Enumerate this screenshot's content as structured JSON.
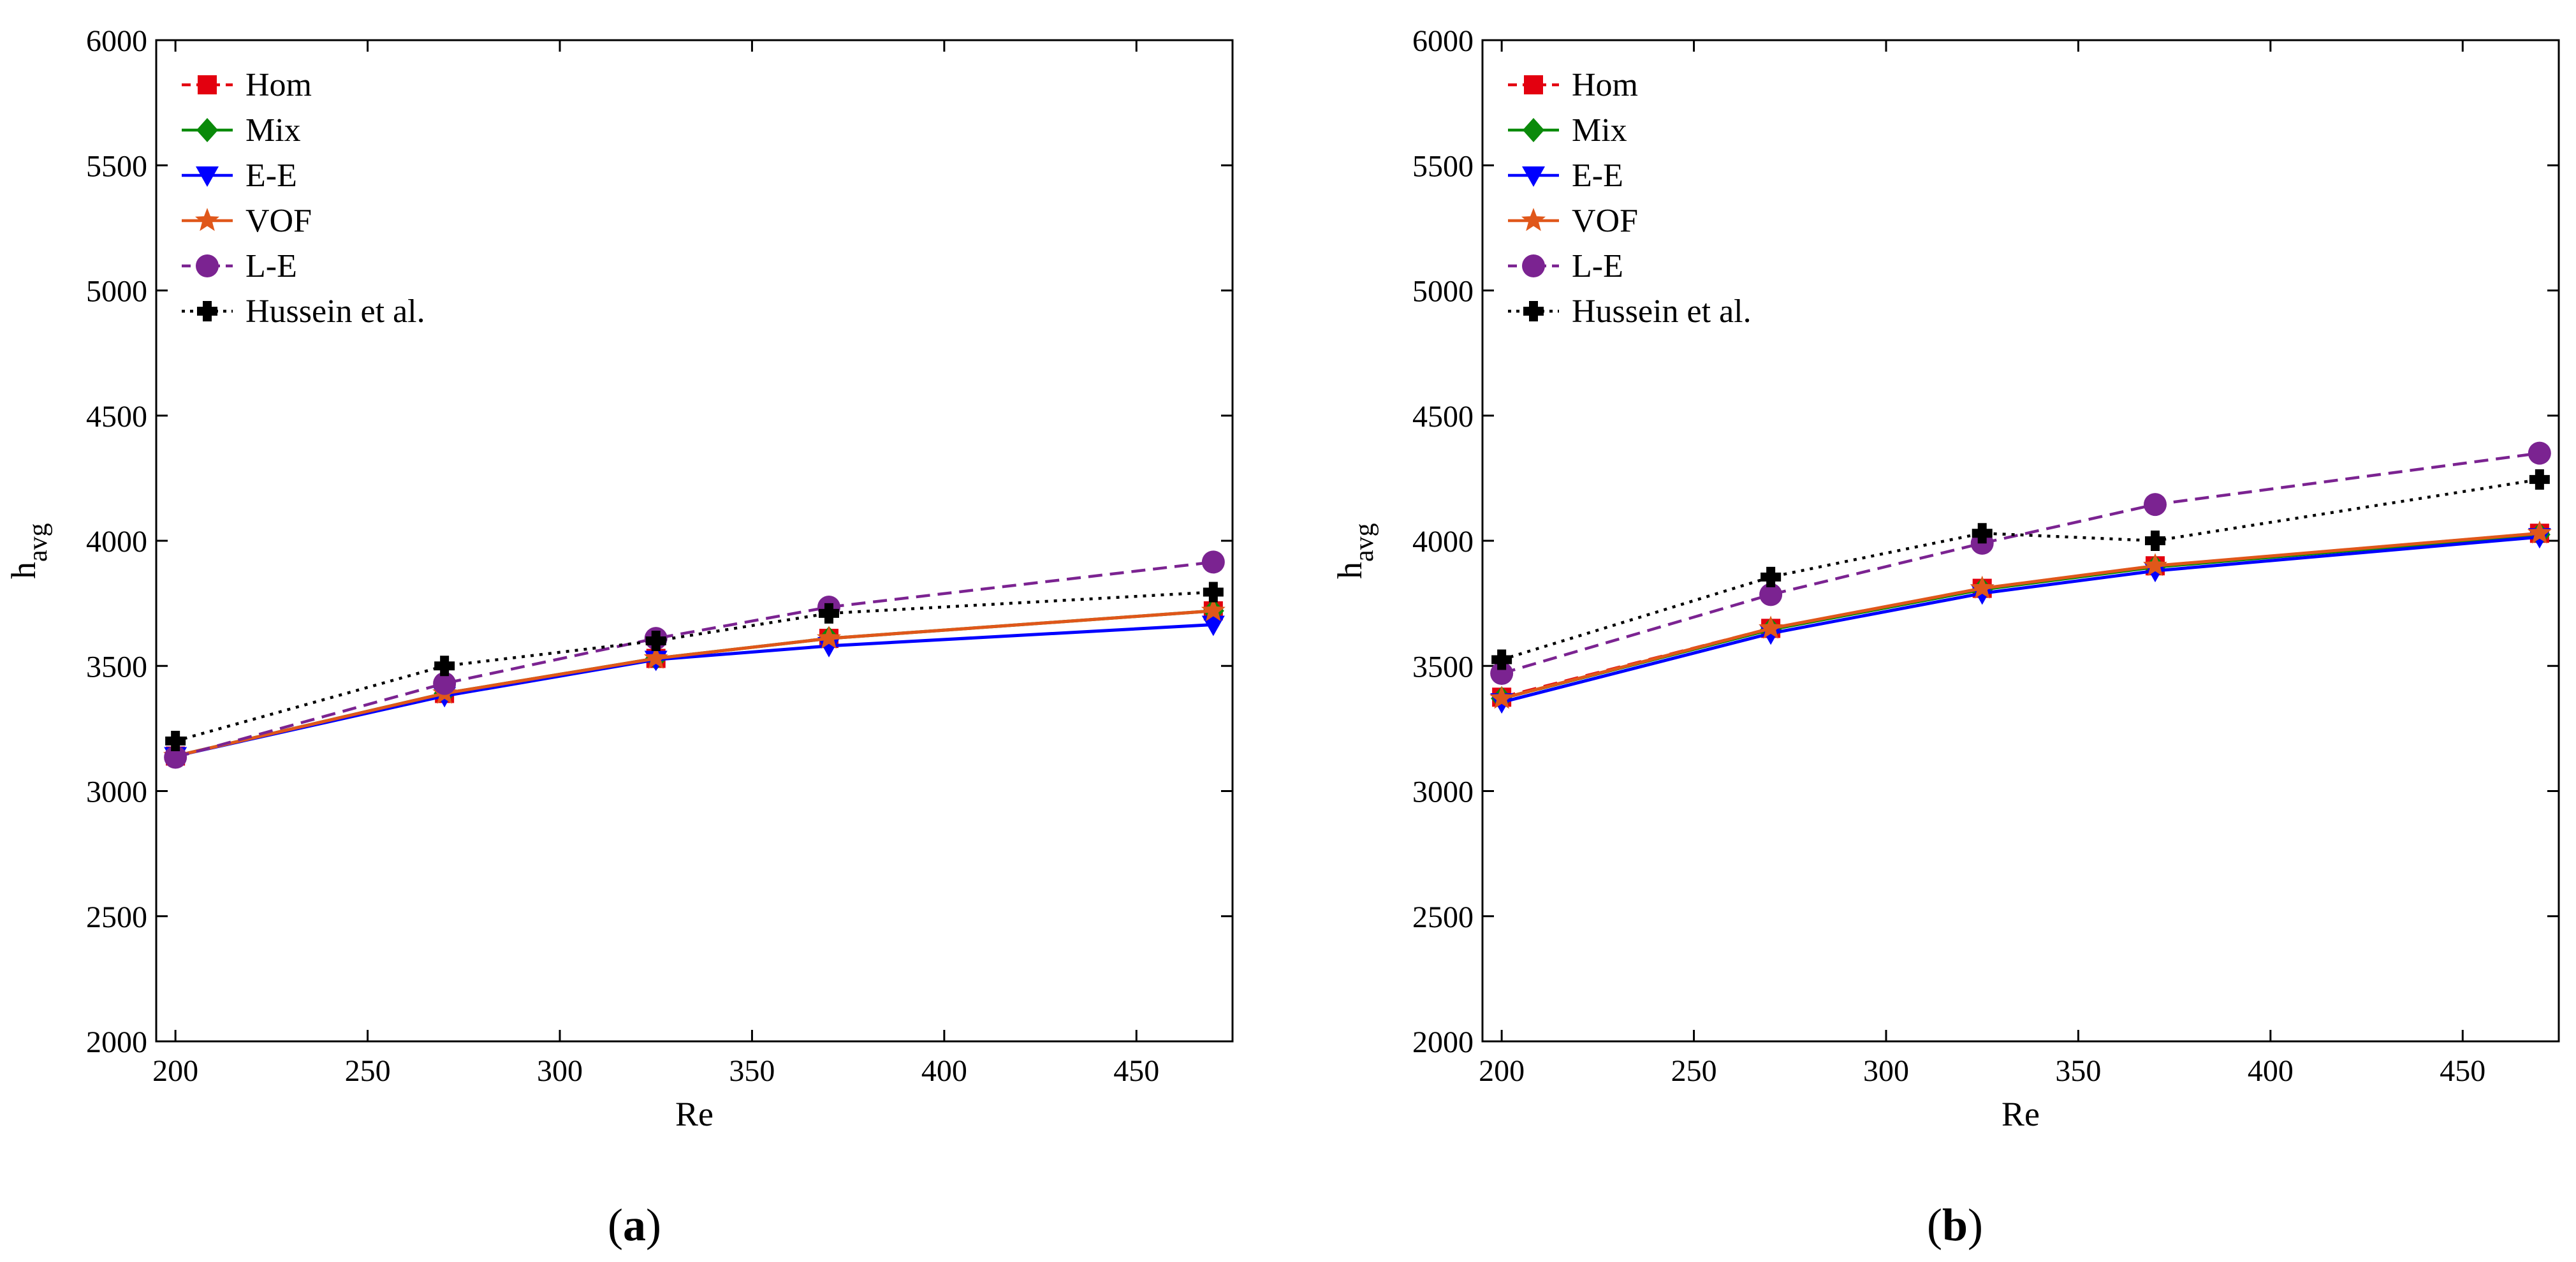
{
  "chart_data": [
    {
      "type": "line",
      "panel": "(a)",
      "caption_letter": "a",
      "xlabel": "Re",
      "ylabel_main": "h",
      "ylabel_sub": "avg",
      "xlim": [
        195,
        475
      ],
      "ylim": [
        2000,
        6000
      ],
      "xticks": [
        200,
        250,
        300,
        350,
        400,
        450
      ],
      "yticks": [
        2000,
        2500,
        3000,
        3500,
        4000,
        4500,
        5000,
        5500,
        6000
      ],
      "grid": false,
      "legend_position": "top-left",
      "x": [
        200,
        270,
        325,
        370,
        470
      ],
      "series": [
        {
          "name": "Hom",
          "values": [
            3140,
            3390,
            3530,
            3610,
            3720
          ],
          "color": "#e3000f",
          "dash": "dashed",
          "marker": "square"
        },
        {
          "name": "Mix",
          "values": [
            3140,
            3390,
            3530,
            3610,
            3720
          ],
          "color": "#0a8a0a",
          "dash": "solid",
          "marker": "diamond"
        },
        {
          "name": "E-E",
          "values": [
            3140,
            3380,
            3525,
            3580,
            3665
          ],
          "color": "#0000ff",
          "dash": "solid",
          "marker": "triangle-down"
        },
        {
          "name": "VOF",
          "values": [
            3140,
            3390,
            3530,
            3610,
            3720
          ],
          "color": "#e0571a",
          "dash": "solid",
          "marker": "star"
        },
        {
          "name": "L-E",
          "values": [
            3135,
            3430,
            3610,
            3735,
            3915
          ],
          "color": "#7b2391",
          "dash": "dashed",
          "marker": "circle"
        },
        {
          "name": "Hussein et al.",
          "values": [
            3200,
            3500,
            3600,
            3710,
            3795
          ],
          "color": "#000000",
          "dash": "dotted",
          "marker": "cross"
        }
      ]
    },
    {
      "type": "line",
      "panel": "(b)",
      "caption_letter": "b",
      "xlabel": "Re",
      "ylabel_main": "h",
      "ylabel_sub": "avg",
      "xlim": [
        195,
        475
      ],
      "ylim": [
        2000,
        6000
      ],
      "xticks": [
        200,
        250,
        300,
        350,
        400,
        450
      ],
      "yticks": [
        2000,
        2500,
        3000,
        3500,
        4000,
        4500,
        5000,
        5500,
        6000
      ],
      "grid": false,
      "legend_position": "top-left",
      "x": [
        200,
        270,
        325,
        370,
        470
      ],
      "series": [
        {
          "name": "Hom",
          "values": [
            3375,
            3650,
            3810,
            3900,
            4030
          ],
          "color": "#e3000f",
          "dash": "dashed",
          "marker": "square"
        },
        {
          "name": "Mix",
          "values": [
            3370,
            3645,
            3805,
            3895,
            4025
          ],
          "color": "#0a8a0a",
          "dash": "solid",
          "marker": "diamond"
        },
        {
          "name": "E-E",
          "values": [
            3355,
            3630,
            3790,
            3880,
            4015
          ],
          "color": "#0000ff",
          "dash": "solid",
          "marker": "triangle-down"
        },
        {
          "name": "VOF",
          "values": [
            3370,
            3650,
            3810,
            3900,
            4030
          ],
          "color": "#e0571a",
          "dash": "solid",
          "marker": "star"
        },
        {
          "name": "L-E",
          "values": [
            3470,
            3785,
            3990,
            4145,
            4350
          ],
          "color": "#7b2391",
          "dash": "dashed",
          "marker": "circle"
        },
        {
          "name": "Hussein et al.",
          "values": [
            3525,
            3855,
            4030,
            4000,
            4245
          ],
          "color": "#000000",
          "dash": "dotted",
          "marker": "cross"
        }
      ]
    }
  ]
}
